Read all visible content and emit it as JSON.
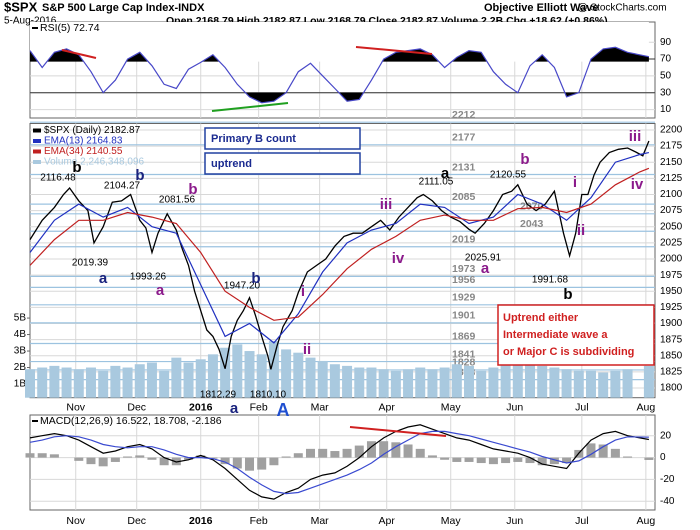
{
  "header": {
    "symbol": "$SPX",
    "name": "S&P 500 Large Cap Index-INDX",
    "date": "5-Aug-2016",
    "quote": "Open 2168.79 High 2182.87 Low 2168.79 Close 2182.87 Volume 2.2B Chg +18.62 (+0.86%)",
    "credit": "Objective Elliott Wave",
    "site": "@ StockCharts.com"
  },
  "chart_data": [
    {
      "type": "line",
      "title": "RSI(5) 72.74",
      "x": [
        0,
        4,
        8,
        12,
        16,
        20,
        24,
        28,
        32,
        36,
        40,
        44,
        48,
        52,
        56,
        60,
        64,
        68,
        72,
        76,
        80,
        84,
        88,
        92,
        96,
        100,
        104,
        108,
        112,
        116,
        120,
        124,
        128,
        132,
        136,
        140,
        144,
        148,
        152,
        156,
        160,
        164,
        168,
        172,
        176,
        180,
        184,
        188,
        192,
        196,
        203
      ],
      "series": [
        {
          "color": "#4848c8",
          "values": [
            80,
            60,
            78,
            82,
            75,
            55,
            30,
            45,
            70,
            78,
            62,
            40,
            35,
            58,
            66,
            75,
            60,
            40,
            25,
            18,
            20,
            30,
            55,
            65,
            50,
            35,
            20,
            22,
            45,
            70,
            78,
            80,
            82,
            75,
            60,
            72,
            80,
            78,
            55,
            40,
            30,
            62,
            75,
            60,
            25,
            30,
            70,
            82,
            84,
            78,
            72.74
          ]
        }
      ],
      "overbought": 70,
      "oversold": 30,
      "ylim": [
        0,
        114
      ],
      "yticks": [
        10,
        30,
        50,
        70,
        90
      ],
      "xlim": [
        0,
        205
      ],
      "xticks": [
        {
          "value": 15,
          "label": "Nov"
        },
        {
          "value": 35,
          "label": "Dec"
        },
        {
          "value": 56,
          "label": "2016"
        },
        {
          "value": 75,
          "label": "Feb"
        },
        {
          "value": 95,
          "label": "Mar"
        },
        {
          "value": 117,
          "label": "Apr"
        },
        {
          "value": 138,
          "label": "May"
        },
        {
          "value": 159,
          "label": "Jun"
        },
        {
          "value": 181,
          "label": "Jul"
        },
        {
          "value": 202,
          "label": "Aug"
        }
      ]
    },
    {
      "type": "line",
      "series": [
        {
          "name": "$SPX (Daily) 2182.87",
          "color": "#000000",
          "x": [
            0,
            4,
            8,
            11,
            13,
            16,
            19,
            21,
            24,
            27,
            30,
            33,
            36,
            38,
            40,
            42,
            45,
            48,
            50,
            52,
            54,
            56,
            58,
            60,
            62,
            64,
            66,
            68,
            70,
            72,
            74,
            76,
            78,
            79,
            81,
            83,
            86,
            88,
            91,
            94,
            97,
            100,
            103,
            106,
            109,
            112,
            115,
            118,
            121,
            124,
            127,
            129,
            132,
            135,
            138,
            141,
            144,
            146,
            149,
            152,
            155,
            158,
            160,
            163,
            166,
            169,
            172,
            175,
            177,
            179,
            181,
            183,
            185,
            187,
            190,
            193,
            196,
            199,
            201,
            203
          ],
          "values": [
            2030,
            2060,
            2080,
            2100,
            2110,
            2090,
            2075,
            2025,
            2050,
            2088,
            2090,
            2100,
            2060,
            2048,
            2010,
            2040,
            2070,
            2045,
            2015,
            1990,
            1950,
            1920,
            1890,
            1880,
            1860,
            1830,
            1880,
            1905,
            1920,
            1940,
            1912,
            1880,
            1850,
            1829,
            1865,
            1895,
            1920,
            1948,
            1980,
            1990,
            2000,
            2020,
            2035,
            2040,
            2040,
            2050,
            2060,
            2045,
            2065,
            2080,
            2095,
            2100,
            2090,
            2075,
            2065,
            2058,
            2046,
            2040,
            2055,
            2075,
            2100,
            2105,
            2115,
            2085,
            2075,
            2085,
            2105,
            2040,
            2005,
            2040,
            2100,
            2100,
            2130,
            2150,
            2165,
            2170,
            2172,
            2165,
            2160,
            2182.87
          ]
        },
        {
          "name": "EMA(13) 2164.83",
          "color": "#2030c0",
          "x": [
            0,
            8,
            16,
            24,
            32,
            40,
            48,
            56,
            64,
            72,
            80,
            88,
            96,
            104,
            112,
            120,
            128,
            136,
            144,
            152,
            160,
            168,
            176,
            184,
            192,
            200,
            203
          ],
          "values": [
            2010,
            2060,
            2085,
            2065,
            2080,
            2050,
            2040,
            1960,
            1880,
            1900,
            1870,
            1915,
            1980,
            2025,
            2045,
            2055,
            2085,
            2080,
            2055,
            2065,
            2100,
            2085,
            2060,
            2095,
            2150,
            2162,
            2164.83
          ]
        },
        {
          "name": "EMA(34) 2140.55",
          "color": "#c02020",
          "x": [
            0,
            8,
            16,
            24,
            32,
            40,
            48,
            56,
            64,
            72,
            80,
            88,
            96,
            104,
            112,
            120,
            128,
            136,
            144,
            152,
            160,
            168,
            176,
            184,
            192,
            200,
            203
          ],
          "values": [
            1990,
            2030,
            2060,
            2060,
            2072,
            2065,
            2055,
            2010,
            1950,
            1925,
            1905,
            1910,
            1945,
            1985,
            2015,
            2035,
            2060,
            2068,
            2060,
            2060,
            2078,
            2080,
            2072,
            2085,
            2115,
            2135,
            2140.55
          ]
        },
        {
          "name": "Volume 2,246,348,096",
          "color": "#a9c9df",
          "type": "bar",
          "axis": "y2",
          "x": [
            0,
            4,
            8,
            12,
            16,
            20,
            24,
            28,
            32,
            36,
            40,
            44,
            48,
            52,
            56,
            60,
            64,
            68,
            72,
            76,
            80,
            84,
            88,
            92,
            96,
            100,
            104,
            108,
            112,
            116,
            120,
            124,
            128,
            132,
            136,
            140,
            144,
            148,
            152,
            156,
            160,
            164,
            168,
            172,
            176,
            180,
            184,
            188,
            192,
            196,
            203
          ],
          "values": [
            1.9,
            2.0,
            2.1,
            2.0,
            1.9,
            2.0,
            1.8,
            2.1,
            2.0,
            2.2,
            2.3,
            1.8,
            2.6,
            2.3,
            2.5,
            2.8,
            3.2,
            3.4,
            3.0,
            2.8,
            3.6,
            3.1,
            2.9,
            2.6,
            2.4,
            2.2,
            2.1,
            2.0,
            2.0,
            1.9,
            1.8,
            1.9,
            2.0,
            1.9,
            2.0,
            2.2,
            2.1,
            1.8,
            2.0,
            2.3,
            3.3,
            2.6,
            2.1,
            2.0,
            1.9,
            1.8,
            1.8,
            1.7,
            1.8,
            1.9,
            2.1
          ]
        }
      ],
      "ylim": [
        1785,
        2210
      ],
      "yticks": [
        1800,
        1825,
        1850,
        1875,
        1900,
        1925,
        1950,
        1975,
        2000,
        2025,
        2050,
        2075,
        2100,
        2125,
        2150,
        2175,
        2200
      ],
      "y2lim": [
        0.17,
        16.8
      ],
      "y2ticks": [
        {
          "value": 1,
          "label": "1B"
        },
        {
          "value": 2,
          "label": "2B"
        },
        {
          "value": 3,
          "label": "3B"
        },
        {
          "value": 4,
          "label": "4B"
        },
        {
          "value": 5,
          "label": "5B"
        }
      ],
      "xlim": [
        0,
        205
      ],
      "xticks": [
        {
          "value": 15,
          "label": "Nov"
        },
        {
          "value": 35,
          "label": "Dec"
        },
        {
          "value": 56,
          "label": "2016"
        },
        {
          "value": 75,
          "label": "Feb"
        },
        {
          "value": 95,
          "label": "Mar"
        },
        {
          "value": 117,
          "label": "Apr"
        },
        {
          "value": 138,
          "label": "May"
        },
        {
          "value": 159,
          "label": "Jun"
        },
        {
          "value": 181,
          "label": "Jul"
        },
        {
          "value": 202,
          "label": "Aug"
        }
      ],
      "levels": [
        2212,
        2177,
        2131,
        2085,
        2070,
        2043,
        2019,
        1973,
        1956,
        1929,
        1901,
        1869,
        1841,
        1828,
        1813
      ],
      "boxes": [
        "Primary B count",
        "uptrend"
      ],
      "note": [
        "Uptrend either",
        "Intermediate wave a",
        "or Major C is subdividing"
      ],
      "annotations": [
        {
          "text": "b",
          "color": "#000000"
        },
        {
          "text": "2116.48",
          "color": "#000000"
        },
        {
          "text": "b",
          "color": "#1a237e"
        },
        {
          "text": "2104.27",
          "color": "#000000"
        },
        {
          "text": "b",
          "color": "#8b1a8b"
        },
        {
          "text": "2081.56",
          "color": "#000000"
        },
        {
          "text": "2019.39",
          "color": "#000000"
        },
        {
          "text": "a",
          "color": "#1a237e"
        },
        {
          "text": "1993.26",
          "color": "#000000"
        },
        {
          "text": "a",
          "color": "#8b1a8b"
        },
        {
          "text": "1947.20",
          "color": "#000000"
        },
        {
          "text": "b",
          "color": "#1a237e"
        },
        {
          "text": "i",
          "color": "#8b1a8b"
        },
        {
          "text": "ii",
          "color": "#8b1a8b"
        },
        {
          "text": "1812.29",
          "color": "#000000"
        },
        {
          "text": "a",
          "color": "#1a237e"
        },
        {
          "text": "1810.10",
          "color": "#000000"
        },
        {
          "text": "A",
          "color": "#1f4fd0"
        },
        {
          "text": "iii",
          "color": "#8b1a8b"
        },
        {
          "text": "iv",
          "color": "#8b1a8b"
        },
        {
          "text": "a",
          "color": "#000000"
        },
        {
          "text": "2111.05",
          "color": "#000000"
        },
        {
          "text": "2025.91",
          "color": "#000000"
        },
        {
          "text": "a",
          "color": "#8b1a8b"
        },
        {
          "text": "b",
          "color": "#8b1a8b"
        },
        {
          "text": "2120.55",
          "color": "#000000"
        },
        {
          "text": "i",
          "color": "#8b1a8b"
        },
        {
          "text": "ii",
          "color": "#8b1a8b"
        },
        {
          "text": "1991.68",
          "color": "#000000"
        },
        {
          "text": "b",
          "color": "#000000"
        },
        {
          "text": "iii",
          "color": "#8b1a8b"
        },
        {
          "text": "iv",
          "color": "#8b1a8b"
        }
      ]
    },
    {
      "type": "line",
      "title": "MACD(12,26,9) 16.522, 18.708, -2.186",
      "x": [
        0,
        4,
        8,
        12,
        16,
        20,
        24,
        28,
        32,
        36,
        40,
        44,
        48,
        52,
        56,
        60,
        64,
        68,
        72,
        76,
        80,
        84,
        88,
        92,
        96,
        100,
        104,
        108,
        112,
        116,
        120,
        124,
        128,
        132,
        136,
        140,
        144,
        148,
        152,
        156,
        160,
        164,
        168,
        172,
        176,
        180,
        184,
        188,
        192,
        196,
        203
      ],
      "series": [
        {
          "color": "#a0a0a0",
          "type": "bar",
          "values": [
            4,
            4,
            3,
            0,
            -3,
            -6,
            -8,
            -4,
            1,
            2,
            -2,
            -7,
            -7,
            -2,
            2,
            -1,
            -6,
            -10,
            -12,
            -11,
            -7,
            1,
            4,
            8,
            8,
            6,
            8,
            11,
            15,
            15,
            14,
            12,
            8,
            2,
            -2,
            -4,
            -4,
            -5,
            -6,
            -5,
            -4,
            -5,
            -7,
            -6,
            -5,
            7,
            13,
            12,
            8,
            1,
            -2.186
          ]
        },
        {
          "color": "#000000",
          "values": [
            18,
            20,
            22,
            20,
            16,
            10,
            4,
            6,
            10,
            12,
            8,
            0,
            -4,
            -2,
            2,
            -2,
            -10,
            -20,
            -30,
            -36,
            -38,
            -32,
            -28,
            -20,
            -16,
            -14,
            -8,
            0,
            10,
            18,
            24,
            28,
            30,
            26,
            22,
            18,
            16,
            12,
            8,
            6,
            4,
            0,
            -6,
            -8,
            -10,
            4,
            16,
            22,
            24,
            20,
            16.522
          ]
        },
        {
          "color": "#3a4ad0",
          "values": [
            14,
            16,
            19,
            20,
            19,
            16,
            12,
            10,
            9,
            10,
            10,
            7,
            3,
            0,
            0,
            -1,
            -4,
            -10,
            -18,
            -25,
            -31,
            -33,
            -32,
            -28,
            -24,
            -20,
            -16,
            -11,
            -5,
            3,
            10,
            16,
            22,
            24,
            24,
            22,
            20,
            17,
            14,
            11,
            8,
            5,
            1,
            -2,
            -5,
            -3,
            3,
            10,
            16,
            19,
            18.708
          ]
        }
      ],
      "ylim": [
        -48,
        39
      ],
      "yticks": [
        -40,
        -20,
        0,
        20
      ],
      "xlim": [
        0,
        205
      ],
      "xticks": [
        {
          "value": 15,
          "label": "Nov"
        },
        {
          "value": 35,
          "label": "Dec"
        },
        {
          "value": 56,
          "label": "2016"
        },
        {
          "value": 75,
          "label": "Feb"
        },
        {
          "value": 95,
          "label": "Mar"
        },
        {
          "value": 117,
          "label": "Apr"
        },
        {
          "value": 138,
          "label": "May"
        },
        {
          "value": 159,
          "label": "Jun"
        },
        {
          "value": 181,
          "label": "Jul"
        },
        {
          "value": 202,
          "label": "Aug"
        }
      ]
    }
  ]
}
